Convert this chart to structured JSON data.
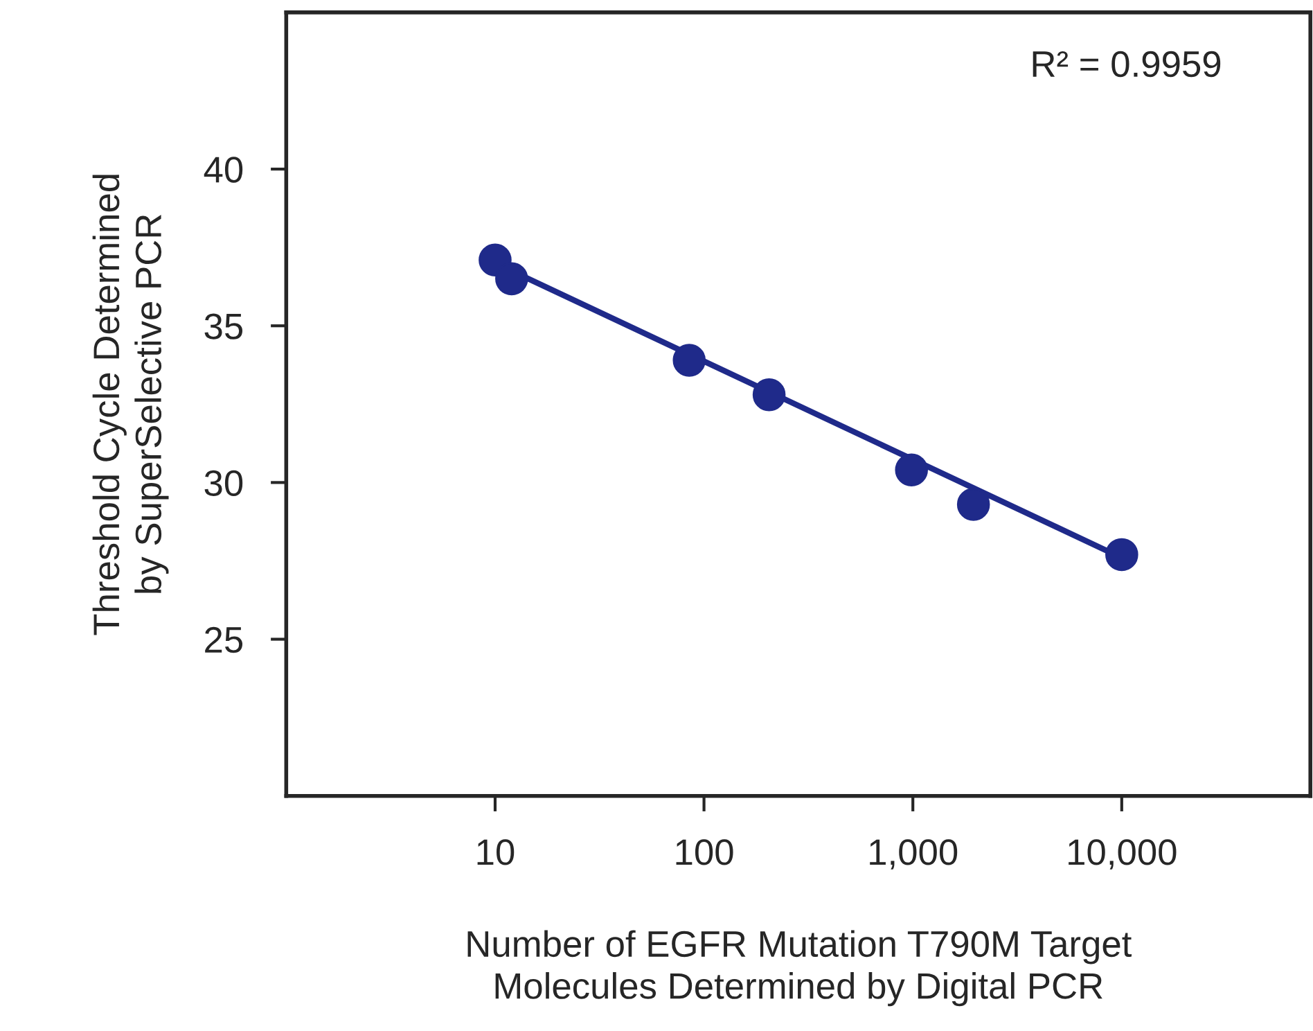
{
  "chart_data": {
    "type": "scatter",
    "xlabel": "Number of EGFR Mutation T790M Target\nMolecules Determined by Digital PCR",
    "ylabel": "Threshold Cycle Determined\nby SuperSelective PCR",
    "log": "x",
    "xlim": [
      1,
      80000
    ],
    "ylim": [
      20,
      45
    ],
    "xticks": [
      {
        "value": 10,
        "label": "10"
      },
      {
        "value": 100,
        "label": "100"
      },
      {
        "value": 1000,
        "label": "1,000"
      },
      {
        "value": 10000,
        "label": "10,000"
      }
    ],
    "yticks": [
      25,
      30,
      35,
      40
    ],
    "grid": false,
    "legend": false,
    "annotations": [
      "R² = 0.9959"
    ],
    "series": [
      {
        "marker": "circle",
        "color": "#1f2a8a",
        "x": [
          10,
          12,
          85,
          205,
          985,
          1950,
          10000
        ],
        "values": [
          37.1,
          36.5,
          33.9,
          32.8,
          30.4,
          29.3,
          27.7
        ]
      },
      {
        "type": "line",
        "color": "#1f2a8a",
        "x": [
          10,
          10000
        ],
        "values": [
          37.0,
          27.6
        ]
      }
    ]
  }
}
